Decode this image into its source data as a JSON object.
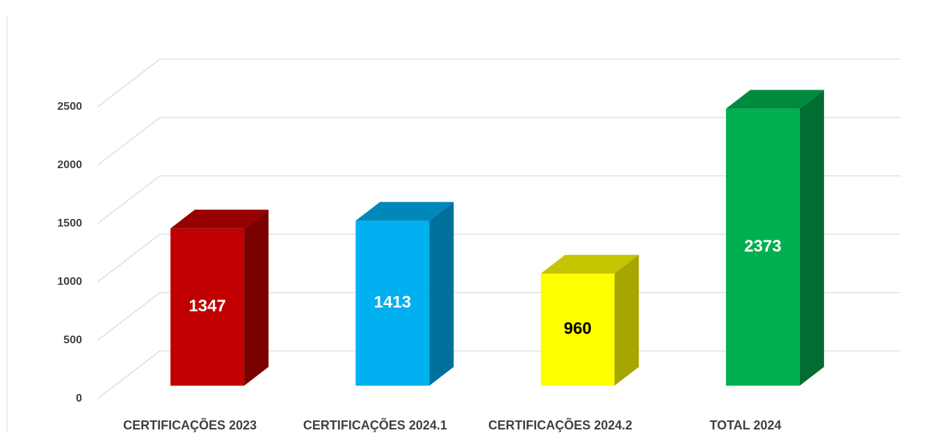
{
  "chart_data": {
    "type": "bar3d",
    "categories": [
      "CERTIFICAÇÕES 2023",
      "CERTIFICAÇÕES 2024.1",
      "CERTIFICAÇÕES 2024.2",
      "TOTAL 2024"
    ],
    "values": [
      1347,
      1413,
      960,
      2373
    ],
    "colors": [
      "#c00000",
      "#00b0f0",
      "#ffff00",
      "#00b050"
    ],
    "top_colors": [
      "#960000",
      "#0088bb",
      "#c4c400",
      "#008a3e"
    ],
    "side_colors": [
      "#7a0000",
      "#00709c",
      "#a6a600",
      "#006e31"
    ],
    "label_colors": [
      "#ffffff",
      "#ffffff",
      "#000000",
      "#ffffff"
    ],
    "ylim": [
      0,
      2500
    ],
    "yticks": [
      0,
      500,
      1000,
      1500,
      2000,
      2500
    ],
    "grid": true
  }
}
